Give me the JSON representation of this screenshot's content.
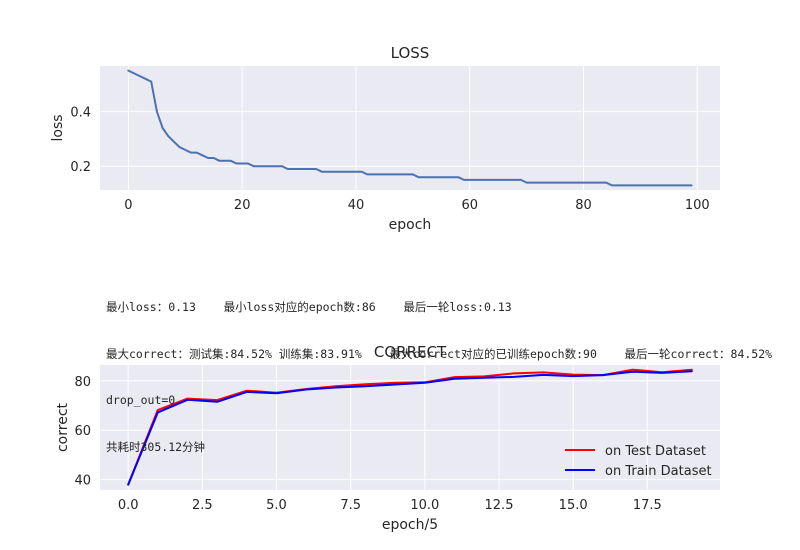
{
  "summary": {
    "line1": "最小loss：0.13    最小loss对应的epoch数:86    最后一轮loss:0.13",
    "line2": "最大correct：测试集:84.52% 训练集:83.91%    最大correct对应的已训练epoch数:90    最后一轮correct：84.52%",
    "line3": "drop_out=0",
    "line4": "共耗时305.12分钟"
  },
  "chart_data": [
    {
      "type": "line",
      "title": "LOSS",
      "xlabel": "epoch",
      "ylabel": "loss",
      "xlim": [
        -5,
        104
      ],
      "ylim": [
        0.113,
        0.567
      ],
      "xticks": [
        0,
        20,
        40,
        60,
        80,
        100
      ],
      "yticks": [
        0.2,
        0.4
      ],
      "ytick_labels": [
        "0.2",
        "0.4"
      ],
      "grid": true,
      "series": [
        {
          "color": "#4c72b0",
          "x": [
            0,
            1,
            2,
            3,
            4,
            5,
            6,
            7,
            8,
            9,
            10,
            11,
            12,
            13,
            14,
            15,
            16,
            17,
            18,
            19,
            20,
            21,
            22,
            23,
            24,
            25,
            26,
            27,
            28,
            29,
            30,
            31,
            32,
            33,
            34,
            35,
            36,
            37,
            38,
            39,
            40,
            41,
            42,
            43,
            44,
            45,
            46,
            47,
            48,
            49,
            50,
            51,
            52,
            53,
            54,
            55,
            56,
            57,
            58,
            59,
            60,
            61,
            62,
            63,
            64,
            65,
            66,
            67,
            68,
            69,
            70,
            71,
            72,
            73,
            74,
            75,
            76,
            77,
            78,
            79,
            80,
            81,
            82,
            83,
            84,
            85,
            86,
            87,
            88,
            89,
            90,
            91,
            92,
            93,
            94,
            95,
            96,
            97,
            98,
            99
          ],
          "y": [
            0.55,
            0.54,
            0.53,
            0.52,
            0.51,
            0.4,
            0.34,
            0.31,
            0.29,
            0.27,
            0.26,
            0.25,
            0.25,
            0.24,
            0.23,
            0.23,
            0.22,
            0.22,
            0.22,
            0.21,
            0.21,
            0.21,
            0.2,
            0.2,
            0.2,
            0.2,
            0.2,
            0.2,
            0.19,
            0.19,
            0.19,
            0.19,
            0.19,
            0.19,
            0.18,
            0.18,
            0.18,
            0.18,
            0.18,
            0.18,
            0.18,
            0.18,
            0.17,
            0.17,
            0.17,
            0.17,
            0.17,
            0.17,
            0.17,
            0.17,
            0.17,
            0.16,
            0.16,
            0.16,
            0.16,
            0.16,
            0.16,
            0.16,
            0.16,
            0.15,
            0.15,
            0.15,
            0.15,
            0.15,
            0.15,
            0.15,
            0.15,
            0.15,
            0.15,
            0.15,
            0.14,
            0.14,
            0.14,
            0.14,
            0.14,
            0.14,
            0.14,
            0.14,
            0.14,
            0.14,
            0.14,
            0.14,
            0.14,
            0.14,
            0.14,
            0.13,
            0.13,
            0.13,
            0.13,
            0.13,
            0.13,
            0.13,
            0.13,
            0.13,
            0.13,
            0.13,
            0.13,
            0.13,
            0.13,
            0.13
          ]
        }
      ]
    },
    {
      "type": "line",
      "title": "CORRECT",
      "xlabel": "epoch/5",
      "ylabel": "correct",
      "xlim": [
        -0.95,
        19.95
      ],
      "ylim": [
        35.8,
        86.4
      ],
      "xticks": [
        0,
        2.5,
        5,
        7.5,
        10,
        12.5,
        15,
        17.5
      ],
      "xtick_labels": [
        "0.0",
        "2.5",
        "5.0",
        "7.5",
        "10.0",
        "12.5",
        "15.0",
        "17.5"
      ],
      "yticks": [
        40,
        60,
        80
      ],
      "grid": true,
      "legend": "lower-right",
      "series": [
        {
          "name": "on Test Dataset",
          "color": "#ff0000",
          "x": [
            0,
            1,
            2,
            3,
            4,
            5,
            6,
            7,
            8,
            9,
            10,
            11,
            12,
            13,
            14,
            15,
            16,
            17,
            18,
            19
          ],
          "y": [
            38.0,
            68.2,
            72.8,
            72.2,
            76.0,
            75.2,
            76.7,
            77.8,
            78.6,
            79.2,
            79.4,
            81.5,
            81.8,
            83.0,
            83.4,
            82.5,
            82.3,
            84.5,
            83.5,
            84.5
          ]
        },
        {
          "name": "on Train Dataset",
          "color": "#0000ff",
          "x": [
            0,
            1,
            2,
            3,
            4,
            5,
            6,
            7,
            8,
            9,
            10,
            11,
            12,
            13,
            14,
            15,
            16,
            17,
            18,
            19
          ],
          "y": [
            38.0,
            67.2,
            72.3,
            71.5,
            75.5,
            75.0,
            76.5,
            77.3,
            77.8,
            78.5,
            79.2,
            80.8,
            81.2,
            81.6,
            82.4,
            81.9,
            82.3,
            83.7,
            83.2,
            83.9
          ]
        }
      ]
    }
  ]
}
